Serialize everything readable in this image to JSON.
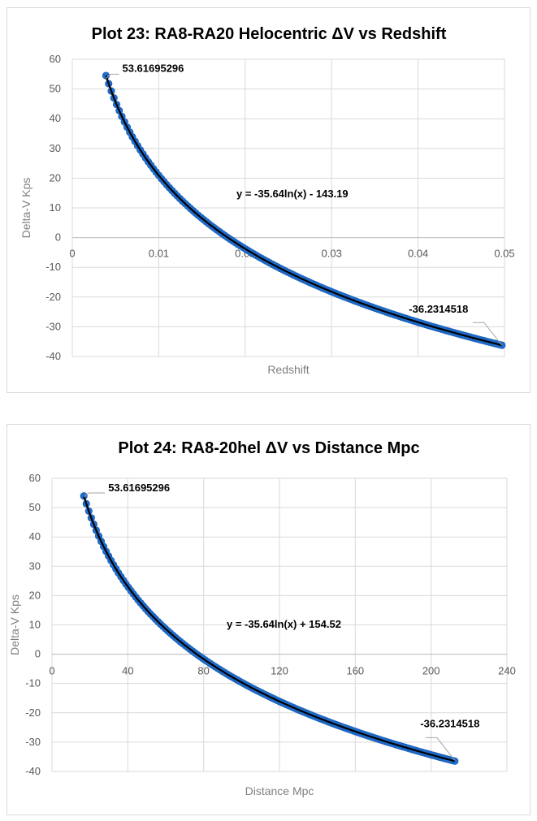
{
  "chart_data": [
    {
      "type": "scatter",
      "title": "Plot 23: RA8-RA20 Helocentric ΔV vs Redshift",
      "xlabel": "Redshift",
      "ylabel": "Delta-V Kps",
      "xlim": [
        0,
        0.05
      ],
      "ylim": [
        -40,
        60
      ],
      "xticks": [
        "0",
        "0.01",
        "0.02",
        "0.03",
        "0.04",
        "0.05"
      ],
      "yticks": [
        "60",
        "50",
        "40",
        "30",
        "20",
        "10",
        "0",
        "-10",
        "-20",
        "-30",
        "-40"
      ],
      "grid": true,
      "trendline": {
        "label": "y = -35.64ln(x) - 143.19",
        "a": -35.64,
        "b": -143.19
      },
      "series": [
        {
          "x_start": 0.0039,
          "x_end": 0.0497,
          "color": "#1f6fd1"
        }
      ],
      "point_labels": [
        {
          "x": 0.0039,
          "y": 53.61695296,
          "text": "53.61695296"
        },
        {
          "x": 0.0497,
          "y": -36.2314518,
          "text": "-36.2314518"
        }
      ]
    },
    {
      "type": "scatter",
      "title": "Plot 24: RA8-20hel ΔV vs Distance Mpc",
      "xlabel": "Distance Mpc",
      "ylabel": "Delta-V Kps",
      "xlim": [
        0,
        240
      ],
      "ylim": [
        -40,
        60
      ],
      "xticks": [
        "0",
        "40",
        "80",
        "120",
        "160",
        "200",
        "240"
      ],
      "yticks": [
        "60",
        "50",
        "40",
        "30",
        "20",
        "10",
        "0",
        "-10",
        "-20",
        "-30",
        "-40"
      ],
      "grid": true,
      "trendline": {
        "label": "y = -35.64ln(x) + 154.52",
        "a": -35.64,
        "b": 154.52
      },
      "series": [
        {
          "x_start": 16.8,
          "x_end": 212.5,
          "color": "#1f6fd1"
        }
      ],
      "point_labels": [
        {
          "x": 16.8,
          "y": 53.61695296,
          "text": "53.61695296"
        },
        {
          "x": 212.5,
          "y": -36.2314518,
          "text": "-36.2314518"
        }
      ]
    }
  ]
}
